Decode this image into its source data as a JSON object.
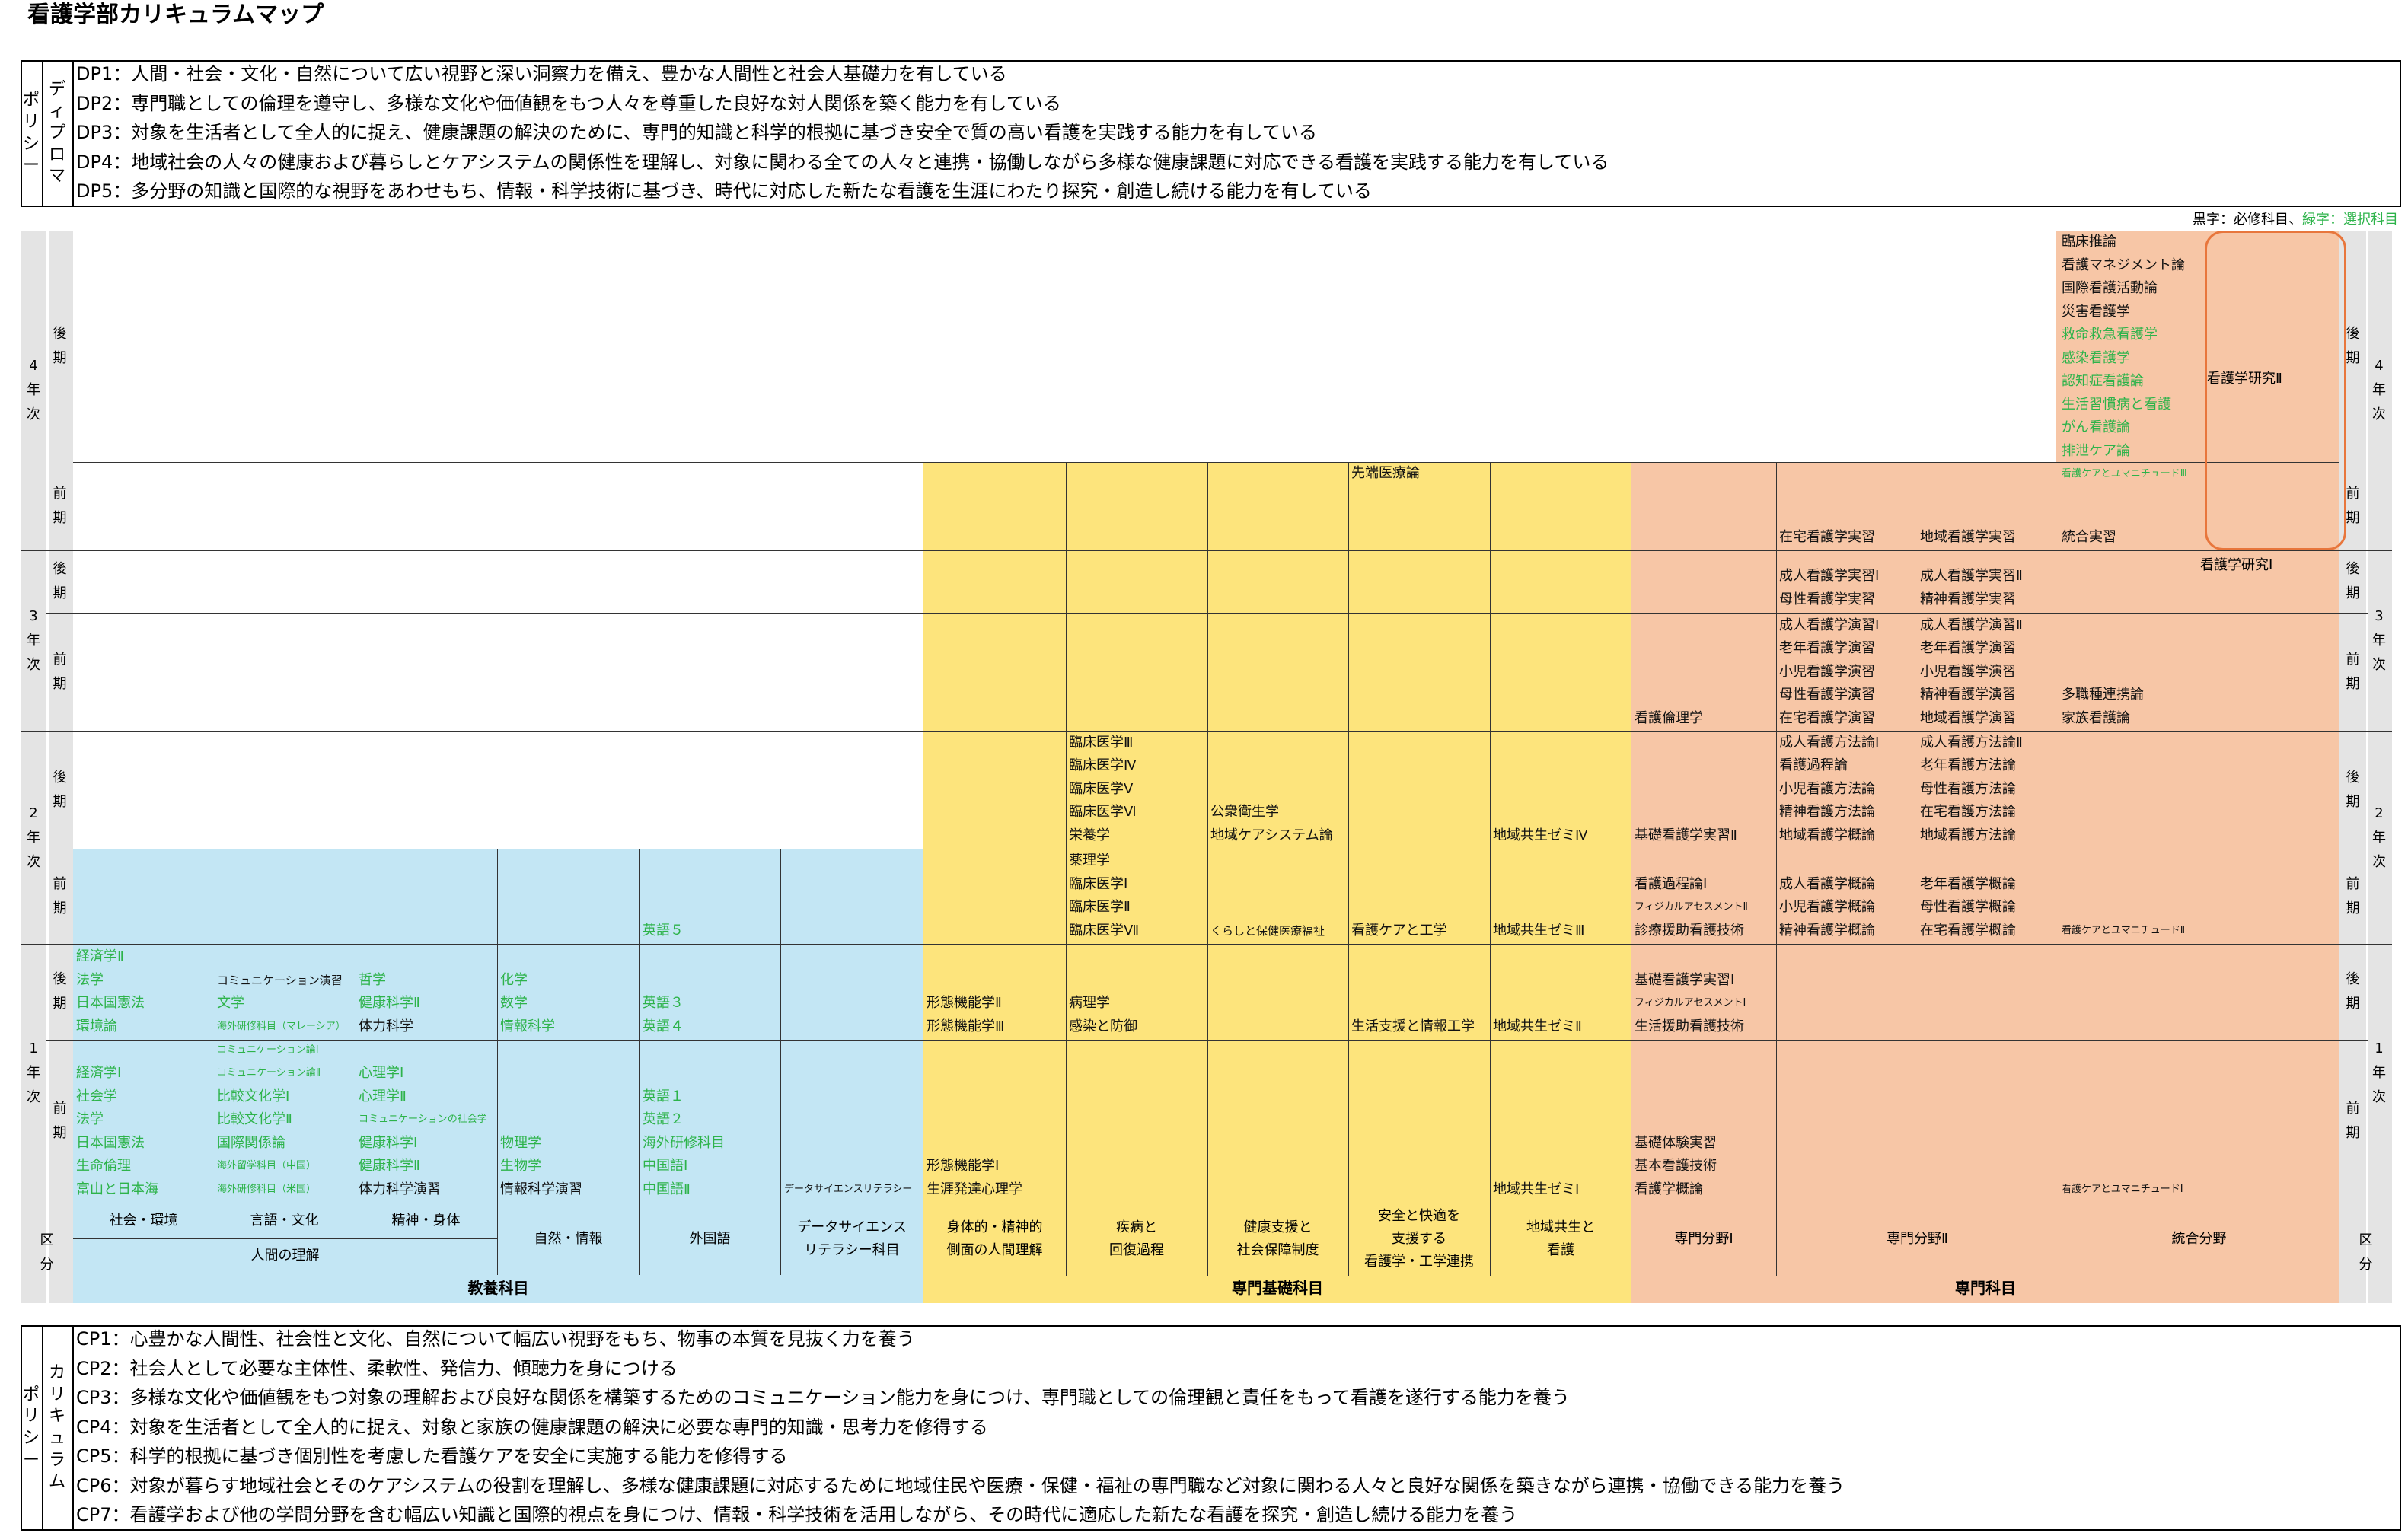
{
  "title": "看護学部カリキュラムマップ",
  "dp": {
    "label": [
      "ディプロマ",
      "ポリシー"
    ],
    "items": [
      "DP1：人間・社会・文化・自然について広い視野と深い洞察力を備え、豊かな人間性と社会人基礎力を有している",
      "DP2：専門職としての倫理を遵守し、多様な文化や価値観をもつ人々を尊重した良好な対人関係を築く能力を有している",
      "DP3：対象を生活者として全人的に捉え、健康課題の解決のために、専門的知識と科学的根拠に基づき安全で質の高い看護を実践する能力を有している",
      "DP4：地域社会の人々の健康および暮らしとケアシステムの関係性を理解し、対象に関わる全ての人々と連携・協働しながら多様な健康課題に対応できる看護を実践する能力を有している",
      "DP5：多分野の知識と国際的な視野をあわせもち、情報・科学技術に基づき、時代に対応した新たな看護を生涯にわたり探究・創造し続ける能力を有している"
    ]
  },
  "legend": {
    "black": "黒字：必修科目、",
    "green": "緑字：選択科目"
  },
  "years": {
    "y4": "4年次",
    "y3": "3年次",
    "y2": "2年次",
    "y1": "1年次",
    "late": "後期",
    "early": "前期",
    "kubun": "区分"
  },
  "headers": {
    "shakai": "社会・環境",
    "gengo": "言語・文化",
    "seishin": "精神・身体",
    "ningen": "人間の理解",
    "shizen": "自然・情報",
    "gaikoku": "外国語",
    "data": [
      "データサイエンス",
      "リテラシー科目"
    ],
    "shintai": [
      "身体的・精神的",
      "側面の人間理解"
    ],
    "shippei": [
      "疾病と",
      "回復過程"
    ],
    "kenko": [
      "健康支援と",
      "社会保障制度"
    ],
    "anzen": [
      "安全と快適を",
      "支援する",
      "看護学・工学連携"
    ],
    "chiiki": [
      "地域共生と",
      "看護"
    ],
    "senmon1": "専門分野Ⅰ",
    "senmon2": "専門分野Ⅱ",
    "togo": "統合分野"
  },
  "categories": {
    "kyoyo": "教養科目",
    "kiso": "専門基礎科目",
    "senmon": "専門科目"
  },
  "cells": {
    "y1e_shakai": [
      [
        "経済学Ⅰ",
        "s"
      ],
      [
        "社会学",
        "s"
      ],
      [
        "法学",
        "s"
      ],
      [
        "日本国憲法",
        "s"
      ],
      [
        "生命倫理",
        "s"
      ],
      [
        "富山と日本海",
        "s"
      ]
    ],
    "y1e_gengo": [
      [
        "コミュニケーション論Ⅰ",
        "s",
        "t"
      ],
      [
        "コミュニケーション論Ⅱ",
        "s",
        "t"
      ],
      [
        "比較文化学Ⅰ",
        "s"
      ],
      [
        "比較文化学Ⅱ",
        "s"
      ],
      [
        "国際関係論",
        "s"
      ],
      [
        "海外留学科目（中国）",
        "s",
        "t"
      ],
      [
        "海外研修科目（米国）",
        "s",
        "t"
      ]
    ],
    "y1e_seishin": [
      [
        "心理学Ⅰ",
        "s"
      ],
      [
        "心理学Ⅱ",
        "s"
      ],
      [
        "コミュニケーションの社会学",
        "s",
        "t"
      ],
      [
        "健康科学Ⅰ",
        "s"
      ],
      [
        "健康科学Ⅱ",
        "s"
      ],
      [
        "体力科学演習",
        "r"
      ]
    ],
    "y1e_shizen": [
      [
        "物理学",
        "s"
      ],
      [
        "生物学",
        "s"
      ],
      [
        "情報科学演習",
        "r"
      ]
    ],
    "y1e_gaikoku": [
      [
        "英語１",
        "s"
      ],
      [
        "英語２",
        "s"
      ],
      [
        "海外研修科目",
        "s"
      ],
      [
        "中国語Ⅰ",
        "s"
      ],
      [
        "中国語Ⅱ",
        "s"
      ]
    ],
    "y1e_data": [
      [
        "データサイエンスリテラシー",
        "r",
        "t"
      ]
    ],
    "y1e_shintai": [
      [
        "形態機能学Ⅰ",
        "r"
      ],
      [
        "生涯発達心理学",
        "r"
      ]
    ],
    "y1e_chiiki": [
      [
        "地域共生ゼミⅠ",
        "r"
      ]
    ],
    "y1e_senmon1": [
      [
        "基礎体験実習",
        "r"
      ],
      [
        "基本看護技術",
        "r"
      ],
      [
        "看護学概論",
        "r"
      ]
    ],
    "y1e_togo": [
      [
        "看護ケアとユマニチュードⅠ",
        "r",
        "t"
      ]
    ],
    "y1l_shakai": [
      [
        "経済学Ⅱ",
        "s"
      ],
      [
        "法学",
        "s"
      ],
      [
        "日本国憲法",
        "s"
      ],
      [
        "環境論",
        "s"
      ]
    ],
    "y1l_gengo": [
      [
        "コミュニケーション演習",
        "r",
        "t2"
      ],
      [
        "文学",
        "s"
      ],
      [
        "海外研修科目（マレーシア）",
        "s",
        "t"
      ]
    ],
    "y1l_seishin": [
      [
        "哲学",
        "s"
      ],
      [
        "健康科学Ⅱ",
        "s"
      ],
      [
        "体力科学",
        "r"
      ]
    ],
    "y1l_shizen": [
      [
        "化学",
        "s"
      ],
      [
        "数学",
        "s"
      ],
      [
        "情報科学",
        "s"
      ]
    ],
    "y1l_gaikoku": [
      [
        "英語３",
        "s"
      ],
      [
        "英語４",
        "s"
      ]
    ],
    "y1l_shintai": [
      [
        "形態機能学Ⅱ",
        "r"
      ],
      [
        "形態機能学Ⅲ",
        "r"
      ]
    ],
    "y1l_shippei": [
      [
        "病理学",
        "r"
      ],
      [
        "感染と防御",
        "r"
      ]
    ],
    "y1l_anzen": [
      [
        "生活支援と情報工学",
        "r"
      ]
    ],
    "y1l_chiiki": [
      [
        "地域共生ゼミⅡ",
        "r"
      ]
    ],
    "y1l_senmon1": [
      [
        "基礎看護学実習Ⅰ",
        "r"
      ],
      [
        "フィジカルアセスメントⅠ",
        "r",
        "t"
      ],
      [
        "生活援助看護技術",
        "r"
      ]
    ],
    "y2e_gaikoku": [
      [
        "英語５",
        "s"
      ]
    ],
    "y2e_shippei": [
      [
        "薬理学",
        "r"
      ],
      [
        "臨床医学Ⅰ",
        "r"
      ],
      [
        "臨床医学Ⅱ",
        "r"
      ],
      [
        "臨床医学Ⅶ",
        "r"
      ]
    ],
    "y2e_kenko": [
      [
        "くらしと保健医療福祉",
        "r",
        "t2"
      ]
    ],
    "y2e_anzen": [
      [
        "看護ケアと工学",
        "r"
      ]
    ],
    "y2e_chiiki": [
      [
        "地域共生ゼミⅢ",
        "r"
      ]
    ],
    "y2e_senmon1": [
      [
        "看護過程論Ⅰ",
        "r"
      ],
      [
        "フィジカルアセスメントⅡ",
        "r",
        "t"
      ],
      [
        "診療援助看護技術",
        "r"
      ]
    ],
    "y2e_s2a": [
      [
        "成人看護学概論",
        "r"
      ],
      [
        "小児看護学概論",
        "r"
      ],
      [
        "精神看護学概論",
        "r"
      ]
    ],
    "y2e_s2b": [
      [
        "老年看護学概論",
        "r"
      ],
      [
        "母性看護学概論",
        "r"
      ],
      [
        "在宅看護学概論",
        "r"
      ]
    ],
    "y2e_togo": [
      [
        "看護ケアとユマニチュードⅡ",
        "r",
        "t"
      ]
    ],
    "y2l_shippei": [
      [
        "臨床医学Ⅲ",
        "r"
      ],
      [
        "臨床医学Ⅳ",
        "r"
      ],
      [
        "臨床医学Ⅴ",
        "r"
      ],
      [
        "臨床医学Ⅵ",
        "r"
      ],
      [
        "栄養学",
        "r"
      ]
    ],
    "y2l_kenko": [
      [
        "公衆衛生学",
        "r"
      ],
      [
        "地域ケアシステム論",
        "r"
      ]
    ],
    "y2l_chiiki": [
      [
        "地域共生ゼミⅣ",
        "r"
      ]
    ],
    "y2l_senmon1": [
      [
        "基礎看護学実習Ⅱ",
        "r"
      ]
    ],
    "y2l_s2a": [
      [
        "成人看護方法論Ⅰ",
        "r"
      ],
      [
        "看護過程論",
        "r"
      ],
      [
        "小児看護方法論",
        "r"
      ],
      [
        "精神看護方法論",
        "r"
      ],
      [
        "地域看護学概論",
        "r"
      ]
    ],
    "y2l_s2b": [
      [
        "成人看護方法論Ⅱ",
        "r"
      ],
      [
        "老年看護方法論",
        "r"
      ],
      [
        "母性看護方法論",
        "r"
      ],
      [
        "在宅看護方法論",
        "r"
      ],
      [
        "地域看護方法論",
        "r"
      ]
    ],
    "y3e_senmon1": [
      [
        "看護倫理学",
        "r"
      ]
    ],
    "y3e_s2a": [
      [
        "成人看護学演習Ⅰ",
        "r"
      ],
      [
        "老年看護学演習",
        "r"
      ],
      [
        "小児看護学演習",
        "r"
      ],
      [
        "母性看護学演習",
        "r"
      ],
      [
        "在宅看護学演習",
        "r"
      ]
    ],
    "y3e_s2b": [
      [
        "成人看護学演習Ⅱ",
        "r"
      ],
      [
        "老年看護学演習",
        "r"
      ],
      [
        "小児看護学演習",
        "r"
      ],
      [
        "精神看護学演習",
        "r"
      ],
      [
        "地域看護学演習",
        "r"
      ]
    ],
    "y3e_togo": [
      [
        "多職種連携論",
        "r"
      ],
      [
        "家族看護論",
        "r"
      ]
    ],
    "y3l_s2a": [
      [
        "成人看護学実習Ⅰ",
        "r"
      ],
      [
        "母性看護学実習",
        "r"
      ]
    ],
    "y3l_s2b": [
      [
        "成人看護学実習Ⅱ",
        "r"
      ],
      [
        "精神看護学実習",
        "r"
      ]
    ],
    "y3l_research": "看護学研究Ⅰ",
    "y4e_s2a": [
      [
        "在宅看護学実習",
        "r"
      ]
    ],
    "y4e_s2b": [
      [
        "地域看護学実習",
        "r"
      ]
    ],
    "y4e_togo": [
      [
        "統合実習",
        "r"
      ]
    ],
    "y4l_anzen": [
      [
        "先端医療論",
        "r"
      ]
    ],
    "y4l_togo": [
      [
        "臨床推論",
        "r"
      ],
      [
        "看護マネジメント論",
        "r"
      ],
      [
        "国際看護活動論",
        "r"
      ],
      [
        "災害看護学",
        "r"
      ],
      [
        "救命救急看護学",
        "s"
      ],
      [
        "感染看護学",
        "s"
      ],
      [
        "認知症看護論",
        "s"
      ],
      [
        "生活習慣病と看護",
        "s"
      ],
      [
        "がん看護論",
        "s"
      ],
      [
        "排泄ケア論",
        "s"
      ],
      [
        "看護ケアとユマニチュードⅢ",
        "s",
        "t"
      ]
    ],
    "y4l_research": "看護学研究Ⅱ"
  },
  "cp": {
    "label": [
      "カリキュラム",
      "ポリシー"
    ],
    "items": [
      "CP1：心豊かな人間性、社会性と文化、自然について幅広い視野をもち、物事の本質を見抜く力を養う",
      "CP2：社会人として必要な主体性、柔軟性、発信力、傾聴力を身につける",
      "CP3：多様な文化や価値観をもつ対象の理解および良好な関係を構築するためのコミュニケーション能力を身につけ、専門職としての倫理観と責任をもって看護を遂行する能力を養う",
      "CP4：対象を生活者として全人的に捉え、対象と家族の健康課題の解決に必要な専門的知識・思考力を修得する",
      "CP5：科学的根拠に基づき個別性を考慮した看護ケアを安全に実施する能力を修得する",
      "CP6：対象が暮らす地域社会とそのケアシステムの役割を理解し、多様な健康課題に対応するために地域住民や医療・保健・福祉の専門職など対象に関わる人々と良好な関係を築きながら連携・協働できる能力を養う",
      "CP7：看護学および他の学問分野を含む幅広い知識と国際的視点を身につけ、情報・科学技術を活用しながら、その時代に適応した新たな看護を探究・創造し続ける能力を養う"
    ]
  }
}
